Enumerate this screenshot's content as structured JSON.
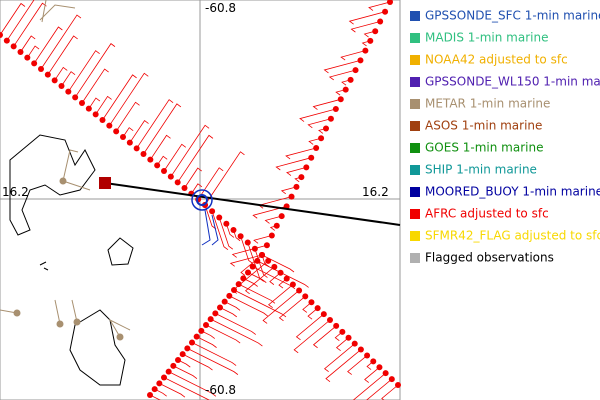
{
  "plot": {
    "top_label": "-60.8",
    "bottom_label": "-60.8",
    "left_label": "16.2",
    "right_label": "16.2"
  },
  "legend": [
    {
      "name": "GPSSONDE_SFC 1-min marine",
      "color": "#2050b0",
      "text_color": "#2050b0"
    },
    {
      "name": "MADIS 1-min marine",
      "color": "#30c080",
      "text_color": "#30c080"
    },
    {
      "name": "NOAA42 adjusted to sfc",
      "color": "#f0b000",
      "text_color": "#f0b000"
    },
    {
      "name": "GPSSONDE_WL150 1-min marine",
      "color": "#5020b0",
      "text_color": "#5020b0"
    },
    {
      "name": "METAR 1-min marine",
      "color": "#a89070",
      "text_color": "#a89070"
    },
    {
      "name": "ASOS 1-min marine",
      "color": "#a04010",
      "text_color": "#a04010"
    },
    {
      "name": "GOES 1-min marine",
      "color": "#109010",
      "text_color": "#109010"
    },
    {
      "name": "SHIP 1-min marine",
      "color": "#109898",
      "text_color": "#109898"
    },
    {
      "name": "MOORED_BUOY 1-min marine",
      "color": "#0000a0",
      "text_color": "#0000a0"
    },
    {
      "name": "AFRC adjusted to sfc",
      "color": "#f00000",
      "text_color": "#f00000"
    },
    {
      "name": "SFMR42_FLAG adjusted to sfc",
      "color": "#f8d800",
      "text_color": "#f8d800"
    },
    {
      "name": "Flagged observations",
      "color": "#b0b0b0",
      "text_color": "#000000"
    }
  ]
}
